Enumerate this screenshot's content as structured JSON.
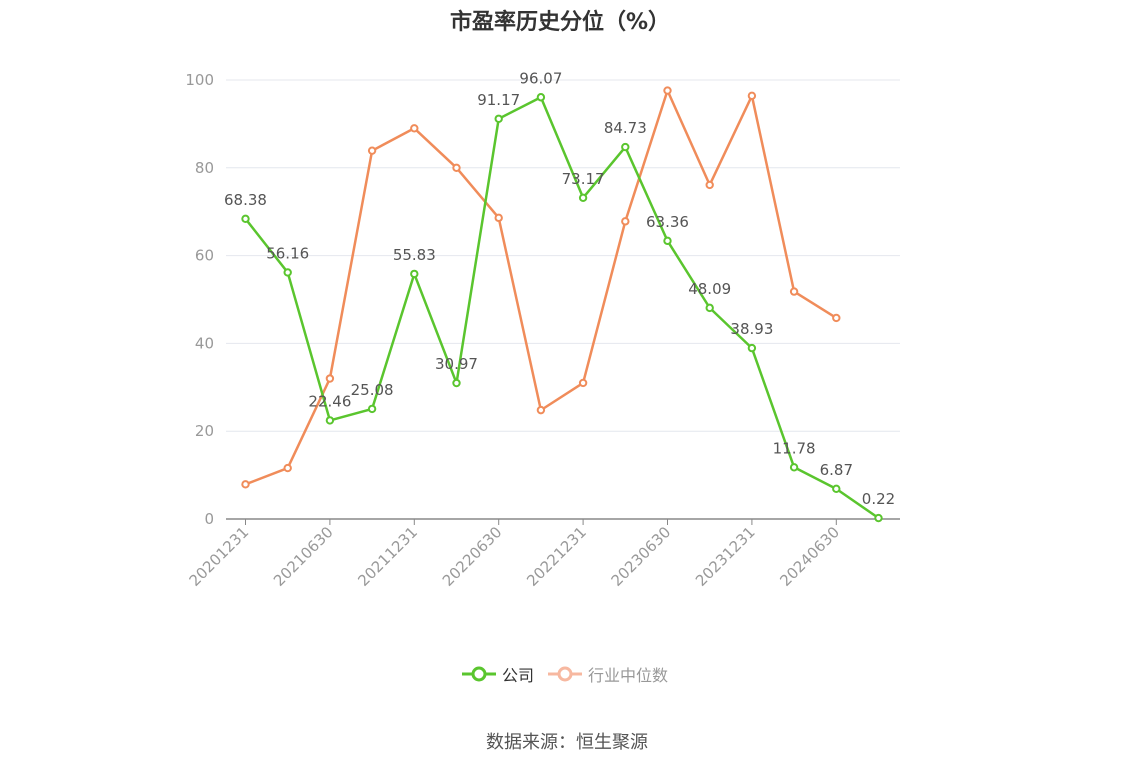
{
  "title": "市盈率历史分位（%）",
  "source": "数据来源：恒生聚源",
  "legend": {
    "company": "公司",
    "industry": "行业中位数"
  },
  "colors": {
    "company": "#5ac52e",
    "industry": "#f08c5a",
    "industry_legend": "#f7b8a0",
    "grid": "#e4e7ee",
    "axis": "#999999",
    "text": "#666666"
  },
  "chart_data": {
    "type": "line",
    "title": "市盈率历史分位（%）",
    "ylim": [
      0,
      100
    ],
    "yticks": [
      0,
      20,
      40,
      60,
      80,
      100
    ],
    "x": [
      "20201231",
      "20210331",
      "20210630",
      "20210930",
      "20211231",
      "20220331",
      "20220630",
      "20220930",
      "20221231",
      "20230331",
      "20230630",
      "20230930",
      "20231231",
      "20240331",
      "20240630",
      "20240930"
    ],
    "xtick_labels": [
      "20201231",
      "20210630",
      "20211231",
      "20220630",
      "20221231",
      "20230630",
      "20231231",
      "20240630"
    ],
    "grid": true,
    "legend_position": "bottom",
    "series": [
      {
        "name": "公司",
        "values": [
          68.38,
          56.16,
          22.46,
          25.08,
          55.83,
          30.97,
          91.17,
          96.07,
          73.17,
          84.73,
          63.36,
          48.09,
          38.93,
          11.78,
          6.87,
          0.22
        ],
        "labels": [
          "68.38",
          "56.16",
          "22.46",
          "25.08",
          "55.83",
          "30.97",
          "91.17",
          "96.07",
          "73.17",
          "84.73",
          "63.36",
          "48.09",
          "38.93",
          "11.78",
          "6.87",
          "0.22"
        ]
      },
      {
        "name": "行业中位数",
        "values": [
          7.9,
          11.6,
          32.0,
          83.9,
          89.0,
          80.0,
          68.6,
          24.8,
          31.0,
          67.8,
          97.6,
          76.1,
          96.4,
          51.8,
          45.8,
          null
        ]
      }
    ]
  }
}
